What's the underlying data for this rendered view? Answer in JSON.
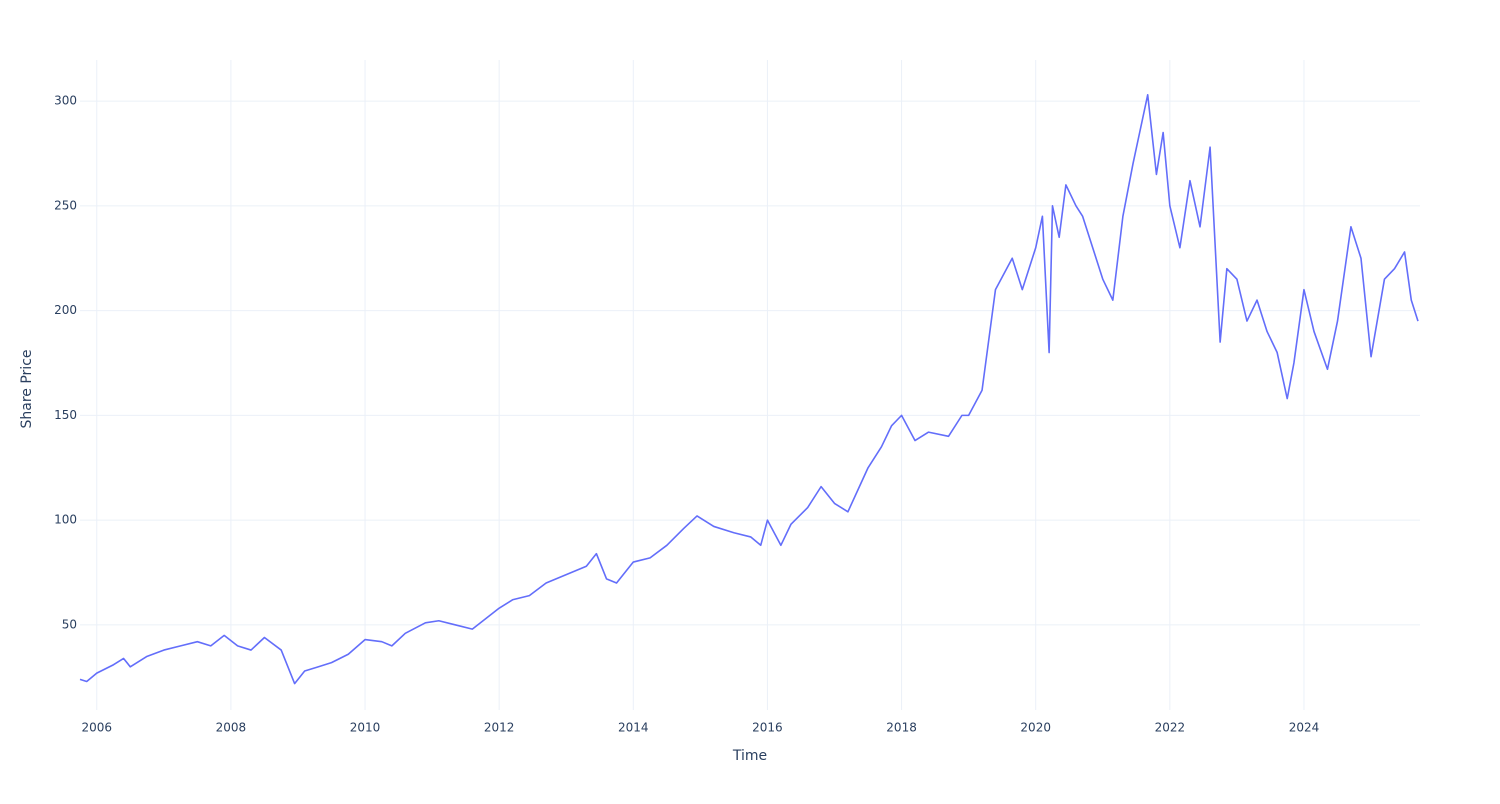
{
  "chart_data": {
    "type": "line",
    "x_label": "Time",
    "y_label": "Share Price",
    "color": "#636efa",
    "grid": true,
    "xlim": [
      2005.75,
      2025.73
    ],
    "xticks": [
      2006,
      2008,
      2010,
      2012,
      2014,
      2016,
      2018,
      2020,
      2022,
      2024
    ],
    "ylim": [
      9.4,
      319.6
    ],
    "yticks": [
      50,
      100,
      150,
      200,
      250,
      300
    ],
    "x": [
      2005.75,
      2005.85,
      2006.0,
      2006.25,
      2006.4,
      2006.5,
      2006.75,
      2007.0,
      2007.25,
      2007.5,
      2007.7,
      2007.9,
      2008.1,
      2008.3,
      2008.5,
      2008.75,
      2008.85,
      2008.95,
      2009.1,
      2009.3,
      2009.5,
      2009.75,
      2010.0,
      2010.25,
      2010.4,
      2010.6,
      2010.9,
      2011.1,
      2011.35,
      2011.6,
      2011.8,
      2012.0,
      2012.2,
      2012.45,
      2012.7,
      2013.0,
      2013.3,
      2013.45,
      2013.6,
      2013.75,
      2014.0,
      2014.25,
      2014.5,
      2014.75,
      2014.95,
      2015.2,
      2015.5,
      2015.75,
      2015.9,
      2016.0,
      2016.2,
      2016.35,
      2016.6,
      2016.8,
      2017.0,
      2017.2,
      2017.5,
      2017.7,
      2017.85,
      2018.0,
      2018.2,
      2018.4,
      2018.7,
      2018.9,
      2019.0,
      2019.2,
      2019.4,
      2019.65,
      2019.8,
      2020.0,
      2020.1,
      2020.2,
      2020.25,
      2020.35,
      2020.45,
      2020.6,
      2020.7,
      2020.85,
      2021.0,
      2021.15,
      2021.3,
      2021.45,
      2021.55,
      2021.67,
      2021.8,
      2021.9,
      2022.0,
      2022.15,
      2022.3,
      2022.45,
      2022.6,
      2022.75,
      2022.85,
      2023.0,
      2023.15,
      2023.3,
      2023.45,
      2023.6,
      2023.75,
      2023.85,
      2024.0,
      2024.15,
      2024.35,
      2024.5,
      2024.7,
      2024.85,
      2025.0,
      2025.2,
      2025.35,
      2025.5,
      2025.6,
      2025.7
    ],
    "values": [
      24,
      23,
      27,
      31,
      34,
      30,
      35,
      38,
      40,
      42,
      40,
      45,
      40,
      38,
      44,
      38,
      30,
      22,
      28,
      30,
      32,
      36,
      43,
      42,
      40,
      46,
      51,
      52,
      50,
      48,
      53,
      58,
      62,
      64,
      70,
      74,
      78,
      84,
      72,
      70,
      80,
      82,
      88,
      96,
      102,
      97,
      94,
      92,
      88,
      100,
      88,
      98,
      106,
      116,
      108,
      104,
      125,
      135,
      145,
      150,
      138,
      142,
      140,
      150,
      150,
      162,
      210,
      225,
      210,
      230,
      245,
      180,
      250,
      235,
      260,
      250,
      245,
      230,
      215,
      205,
      245,
      270,
      285,
      303,
      265,
      285,
      250,
      230,
      262,
      240,
      278,
      185,
      220,
      215,
      195,
      205,
      190,
      180,
      158,
      175,
      210,
      190,
      172,
      195,
      240,
      225,
      178,
      215,
      220,
      228,
      205,
      195
    ]
  }
}
